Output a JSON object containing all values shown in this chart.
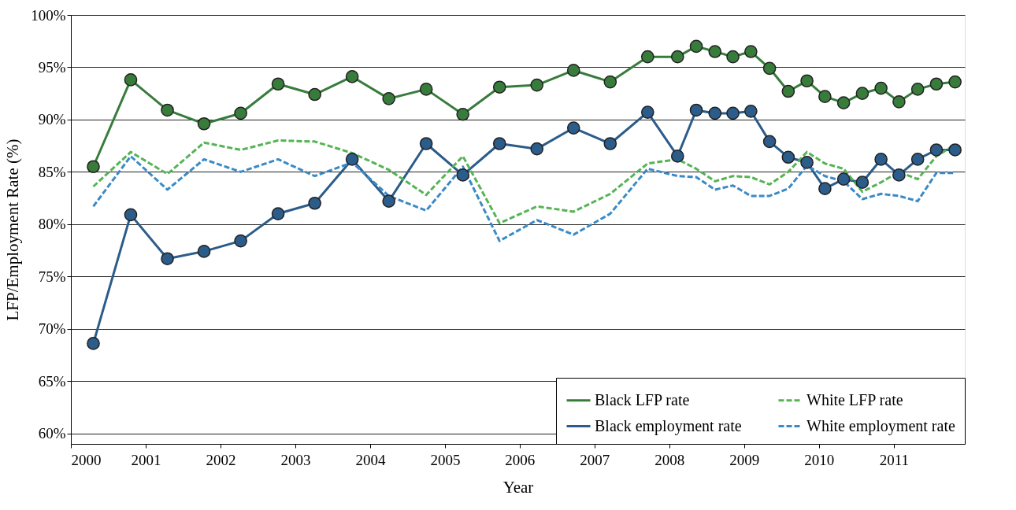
{
  "chart_data": {
    "type": "line",
    "xlabel": "Year",
    "ylabel": "LFP/Employment Rate (%)",
    "x": [
      2000.3,
      2000.8,
      2001.29,
      2001.78,
      2002.27,
      2002.77,
      2003.26,
      2003.76,
      2004.25,
      2004.75,
      2005.24,
      2005.73,
      2006.23,
      2006.72,
      2007.21,
      2007.71,
      2008.11,
      2008.36,
      2008.61,
      2008.85,
      2009.09,
      2009.34,
      2009.59,
      2009.84,
      2010.08,
      2010.33,
      2010.58,
      2010.83,
      2011.07,
      2011.32,
      2011.57,
      2011.82
    ],
    "series": [
      {
        "name": "Black LFP rate",
        "color": "#387c3c",
        "marker": "circle",
        "line_style": "solid",
        "values": [
          85.5,
          93.8,
          90.9,
          89.6,
          90.6,
          93.4,
          92.4,
          94.1,
          92.0,
          92.9,
          90.5,
          93.1,
          93.3,
          94.7,
          93.6,
          96.0,
          96.0,
          97.0,
          96.5,
          96.0,
          96.5,
          94.9,
          92.7,
          93.7,
          92.2,
          91.6,
          92.5,
          93.0,
          91.7,
          92.9,
          93.4,
          93.6
        ]
      },
      {
        "name": "Black employment rate",
        "color": "#2b5c8a",
        "marker": "circle",
        "line_style": "solid",
        "values": [
          68.6,
          80.9,
          76.7,
          77.4,
          78.4,
          81.0,
          82.0,
          86.2,
          82.2,
          87.7,
          84.7,
          87.7,
          87.2,
          89.2,
          87.7,
          90.7,
          86.5,
          90.9,
          90.6,
          90.6,
          90.8,
          87.9,
          86.4,
          85.9,
          83.4,
          84.3,
          84.0,
          86.2,
          84.7,
          86.2,
          87.1,
          87.1
        ]
      },
      {
        "name": "White LFP rate",
        "color": "#56b356",
        "marker": "none",
        "line_style": "dashed",
        "values": [
          83.6,
          86.9,
          84.8,
          87.8,
          87.1,
          88.0,
          87.9,
          86.8,
          85.2,
          82.8,
          86.5,
          80.1,
          81.7,
          81.2,
          82.9,
          85.8,
          86.2,
          85.3,
          84.1,
          84.6,
          84.5,
          83.8,
          85.0,
          86.9,
          85.8,
          85.3,
          83.1,
          84.0,
          85.0,
          84.3,
          86.5,
          87.6
        ]
      },
      {
        "name": "White employment rate",
        "color": "#3a8ac6",
        "marker": "none",
        "line_style": "dashed",
        "values": [
          81.7,
          86.5,
          83.3,
          86.2,
          85.0,
          86.2,
          84.6,
          85.9,
          82.7,
          81.3,
          85.5,
          78.4,
          80.4,
          79.0,
          81.0,
          85.3,
          84.6,
          84.5,
          83.3,
          83.7,
          82.7,
          82.7,
          83.4,
          85.6,
          84.6,
          84.1,
          82.4,
          82.9,
          82.7,
          82.2,
          84.9,
          84.9
        ]
      }
    ],
    "xlim": [
      2000,
      2011.95
    ],
    "xticks": [
      2000,
      2001,
      2002,
      2003,
      2004,
      2005,
      2006,
      2007,
      2008,
      2009,
      2010,
      2011
    ],
    "ylim": [
      59,
      100
    ],
    "yticks": [
      {
        "value": 60,
        "label": "60%"
      },
      {
        "value": 65,
        "label": "65%"
      },
      {
        "value": 70,
        "label": "70%"
      },
      {
        "value": 75,
        "label": "75%"
      },
      {
        "value": 80,
        "label": "80%"
      },
      {
        "value": 85,
        "label": "85%"
      },
      {
        "value": 90,
        "label": "90%"
      },
      {
        "value": 95,
        "label": "95%"
      },
      {
        "value": 100,
        "label": "100%"
      }
    ],
    "grid": "y",
    "legend": "bottom right"
  }
}
